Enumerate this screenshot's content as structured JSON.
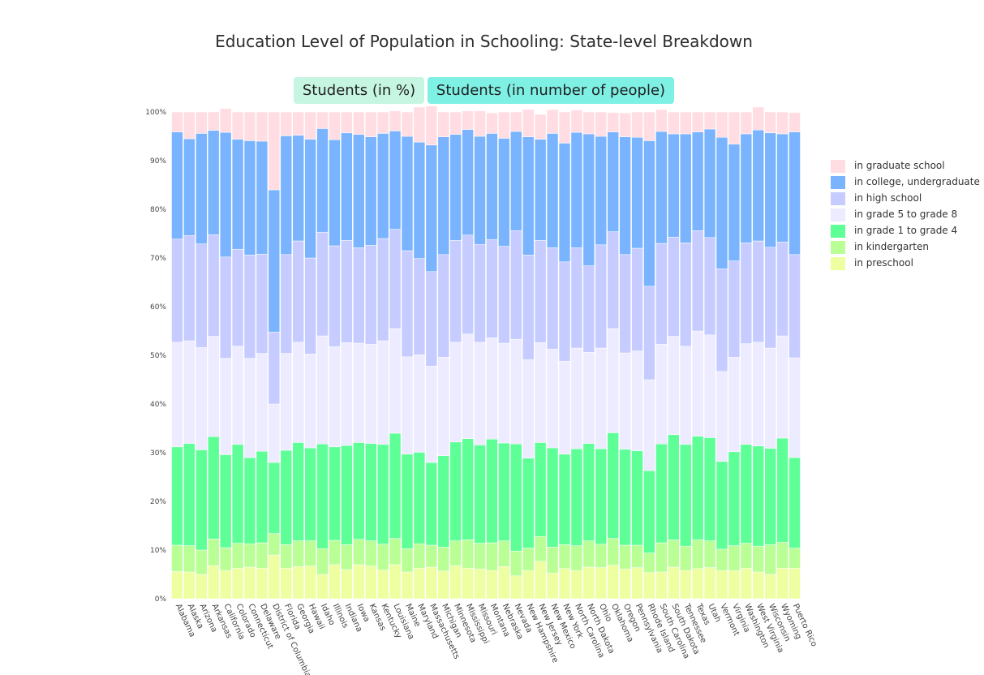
{
  "title": "Education Level of Population in Schooling: State-level Breakdown",
  "buttons": {
    "percent": "Students (in %)",
    "people": "Students (in number of people)"
  },
  "colors": {
    "in graduate school": "#ffdde2",
    "in college, undergraduate": "#7ab4ff",
    "in high school": "#c6ccff",
    "in grade 5 to grade 8": "#ecebff",
    "in grade 1 to grade 4": "#5fff97",
    "in kindergarten": "#b9ff96",
    "in preschool": "#edffa1"
  },
  "chart_data": {
    "type": "bar",
    "stacked": true,
    "ylim": [
      0,
      100
    ],
    "yticks": [
      "0%",
      "10%",
      "20%",
      "30%",
      "40%",
      "50%",
      "60%",
      "70%",
      "80%",
      "90%",
      "100%"
    ],
    "grid": false,
    "legend_position": "right",
    "categories": [
      "Alabama",
      "Alaska",
      "Arizona",
      "Arkansas",
      "California",
      "Colorado",
      "Connecticut",
      "Delaware",
      "District of Columbia",
      "Florida",
      "Georgia",
      "Hawaii",
      "Idaho",
      "Illinois",
      "Indiana",
      "Iowa",
      "Kansas",
      "Kentucky",
      "Louisiana",
      "Maine",
      "Maryland",
      "Massachusetts",
      "Michigan",
      "Minnesota",
      "Mississippi",
      "Missouri",
      "Montana",
      "Nebraska",
      "Nevada",
      "New Hampshire",
      "New Jersey",
      "New Mexico",
      "New York",
      "North Carolina",
      "North Dakota",
      "Ohio",
      "Oklahoma",
      "Oregon",
      "Pennsylvania",
      "Rhode Island",
      "South Carolina",
      "South Dakota",
      "Tennessee",
      "Texas",
      "Utah",
      "Vermont",
      "Virginia",
      "Washington",
      "West Virginia",
      "Wisconsin",
      "Wyoming",
      "Puerto Rico"
    ],
    "legend_order": [
      "in graduate school",
      "in college, undergraduate",
      "in high school",
      "in grade 5 to grade 8",
      "in grade 1 to grade 4",
      "in kindergarten",
      "in preschool"
    ],
    "series": [
      {
        "name": "in preschool",
        "values": [
          5.6,
          5.5,
          5,
          6.8,
          5.8,
          6.3,
          6.5,
          6.3,
          9,
          6.3,
          6.6,
          6.7,
          5,
          7,
          6,
          7,
          6.7,
          5.9,
          7,
          5.5,
          6.3,
          6.5,
          5.7,
          6.8,
          6.3,
          6.1,
          5.8,
          6.6,
          4.7,
          5.8,
          7.7,
          5.3,
          6.2,
          5.8,
          6.5,
          6.4,
          6.9,
          6.1,
          6.4,
          5.4,
          5.5,
          6.5,
          5.8,
          6.2,
          6.4,
          5.8,
          5.8,
          6.3,
          5.5,
          5,
          6.3,
          6.3
        ]
      },
      {
        "name": "in kindergarten",
        "values": [
          5.4,
          5.4,
          5,
          5.5,
          4.7,
          5.1,
          4.8,
          5.2,
          4.4,
          4.8,
          5.3,
          5.2,
          5.3,
          5,
          5.1,
          5.2,
          5.2,
          5.3,
          5.4,
          4.8,
          5,
          4.5,
          4.9,
          5.1,
          5.8,
          5.3,
          5.7,
          5.3,
          5.1,
          4.6,
          5.1,
          5.3,
          4.9,
          5.1,
          5.4,
          4.8,
          5.5,
          4.9,
          4.6,
          4,
          6,
          5.6,
          5,
          5.9,
          5.5,
          4.4,
          5.1,
          5.1,
          5.3,
          6.1,
          5.3,
          4.1
        ]
      },
      {
        "name": "in grade 1 to grade 4",
        "values": [
          20.2,
          21,
          20.6,
          21,
          19.1,
          20.3,
          17.7,
          18.8,
          14.6,
          19.4,
          20.2,
          19.1,
          21.5,
          19.2,
          20.4,
          19.9,
          20,
          20.5,
          21.6,
          19.4,
          18.8,
          17,
          18.8,
          20.3,
          20.8,
          20.2,
          21.3,
          20.1,
          22,
          18.5,
          19.3,
          20.4,
          18.6,
          19.9,
          20,
          19.6,
          21.7,
          19.7,
          19.4,
          16.9,
          20.3,
          21.6,
          20.9,
          21.3,
          21.2,
          18,
          19.3,
          20.3,
          20.6,
          19.8,
          21.4,
          18.6
        ]
      },
      {
        "name": "in grade 5 to grade 8",
        "values": [
          21.5,
          21.1,
          21,
          20.6,
          19.8,
          20.2,
          20.4,
          20.1,
          12,
          19.9,
          20.6,
          19.3,
          22.2,
          20.6,
          21.1,
          20.4,
          20.4,
          21.3,
          21.5,
          20,
          20,
          19.8,
          20.2,
          20.5,
          21.5,
          21.1,
          20.8,
          20.5,
          21.5,
          20.2,
          20.5,
          20.3,
          19.1,
          20.7,
          18.7,
          20.7,
          21.4,
          19.8,
          20.5,
          18.7,
          20.5,
          20.2,
          20.2,
          21.6,
          21.1,
          18.5,
          19.4,
          20.7,
          21.3,
          20.6,
          21,
          20.5
        ]
      },
      {
        "name": "in high school",
        "values": [
          21.2,
          21.6,
          21.3,
          20.9,
          20.8,
          19.9,
          21.2,
          20.4,
          14.8,
          20.3,
          20.8,
          19.7,
          21.3,
          20.7,
          21,
          19.6,
          20.3,
          21,
          20.4,
          21.8,
          19.8,
          19.4,
          21.1,
          20.9,
          20.3,
          20.1,
          20.2,
          19.9,
          22.3,
          21.5,
          21,
          20.8,
          20.4,
          20.6,
          17.8,
          21.2,
          19.9,
          20.2,
          21.1,
          19.2,
          20.7,
          20.4,
          21.2,
          20.6,
          20,
          21.1,
          19.8,
          20.7,
          20.8,
          20.7,
          19.3,
          21.2
        ]
      },
      {
        "name": "in college, undergraduate",
        "values": [
          22,
          19.9,
          22.7,
          21.4,
          25.6,
          22.6,
          23.5,
          23.2,
          29.2,
          24.4,
          21.7,
          24.4,
          21.3,
          21.8,
          22.1,
          23.3,
          22.3,
          21.6,
          20.2,
          23.5,
          23.9,
          26,
          24.2,
          21.8,
          21.7,
          22.2,
          21.8,
          22.2,
          20.4,
          24.3,
          20.8,
          23.5,
          24.4,
          23.7,
          27.1,
          22.3,
          20.5,
          24.2,
          22.8,
          29.9,
          23,
          21.2,
          22.4,
          20.3,
          22.3,
          27,
          24,
          22.4,
          22.8,
          23.5,
          22.2,
          25.2
        ]
      },
      {
        "name": "in graduate school",
        "values": [
          4.1,
          5.5,
          4.4,
          3.8,
          4.9,
          5.6,
          5.9,
          6,
          16,
          4.9,
          4.8,
          5.6,
          3.4,
          5.7,
          4.3,
          4.6,
          5.1,
          4.4,
          4.1,
          5,
          7.2,
          8,
          5.1,
          4.6,
          3.8,
          5.2,
          4.2,
          5.4,
          4,
          5.6,
          5.1,
          4.9,
          6.4,
          4.6,
          4.5,
          5,
          4,
          4.9,
          5.2,
          5.9,
          4.5,
          4.5,
          4.5,
          4.1,
          3.5,
          5.2,
          6.6,
          4.5,
          4.7,
          4.3,
          4.5,
          4
        ]
      }
    ]
  }
}
